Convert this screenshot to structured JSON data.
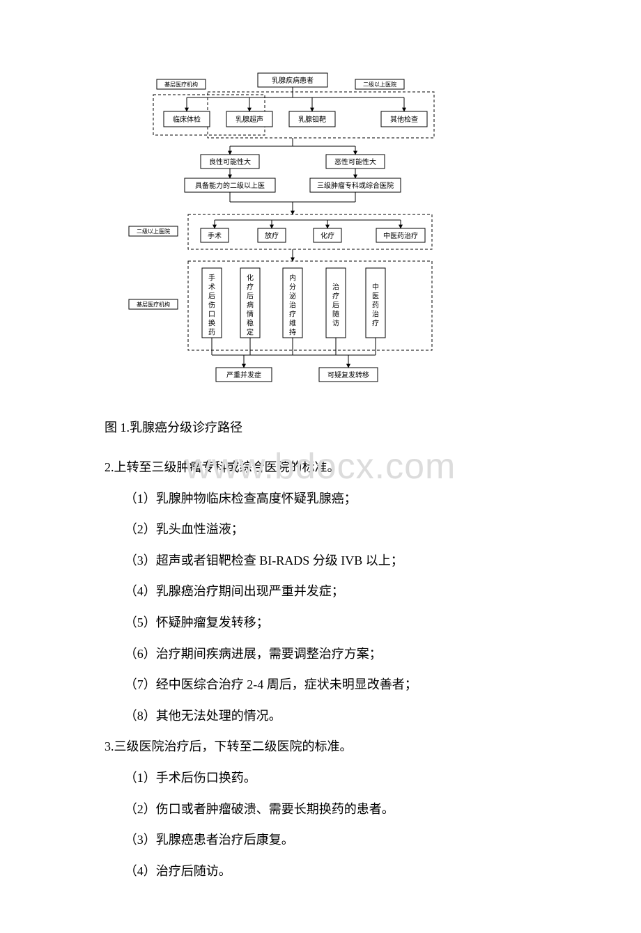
{
  "flowchart": {
    "type": "flowchart",
    "background_color": "#ffffff",
    "node_border_color": "#000000",
    "node_fill": "#ffffff",
    "dashed_pattern": "4 3",
    "font_family": "SimSun",
    "font_size_normal": 10,
    "font_size_small": 8,
    "labels": {
      "top": "乳腺疾病患者",
      "side_left_top": "基层医疗机构",
      "side_right_top": "二级以上医院",
      "exam1": "临床体检",
      "exam2": "乳腺超声",
      "exam3": "乳腺钼靶",
      "exam4": "其他检查",
      "benign": "良性可能性大",
      "malignant": "恶性可能性大",
      "cap_level2": "具备能力的二级以上医",
      "cap_level3": "三级肿瘤专科或综合医院",
      "side_mid": "二级以上医院",
      "tx1": "手术",
      "tx2": "放疗",
      "tx3": "化疗",
      "tx4": "中医药治疗",
      "side_bottom": "基层医疗机构",
      "fu1": "手术后伤口换药",
      "fu2": "化疗后病情稳定",
      "fu3": "内分泌治疗维持",
      "fu4": "治疗后随访",
      "fu5": "中医药治疗",
      "out1": "严重并发症",
      "out2": "可疑复发转移"
    }
  },
  "caption": "图 1.乳腺癌分级诊疗路径",
  "watermark": "www.bdocx.com",
  "section2": {
    "heading": "2.上转至三级肿瘤专科或综合医院的标准。",
    "items": [
      "（1）乳腺肿物临床检查高度怀疑乳腺癌；",
      "（2）乳头血性溢液；",
      "（3）超声或者钼靶检查 BI-RADS 分级 IVB 以上；",
      "（4）乳腺癌治疗期间出现严重并发症；",
      "（5）怀疑肿瘤复发转移；",
      "（6）治疗期间疾病进展，需要调整治疗方案；",
      "（7）经中医综合治疗 2-4 周后，症状未明显改善者；",
      "（8）其他无法处理的情况。"
    ]
  },
  "section3": {
    "heading": "3.三级医院治疗后，下转至二级医院的标准。",
    "items": [
      "（1）手术后伤口换药。",
      "（2）伤口或者肿瘤破溃、需要长期换药的患者。",
      "（3）乳腺癌患者治疗后康复。",
      "（4）治疗后随访。"
    ]
  }
}
